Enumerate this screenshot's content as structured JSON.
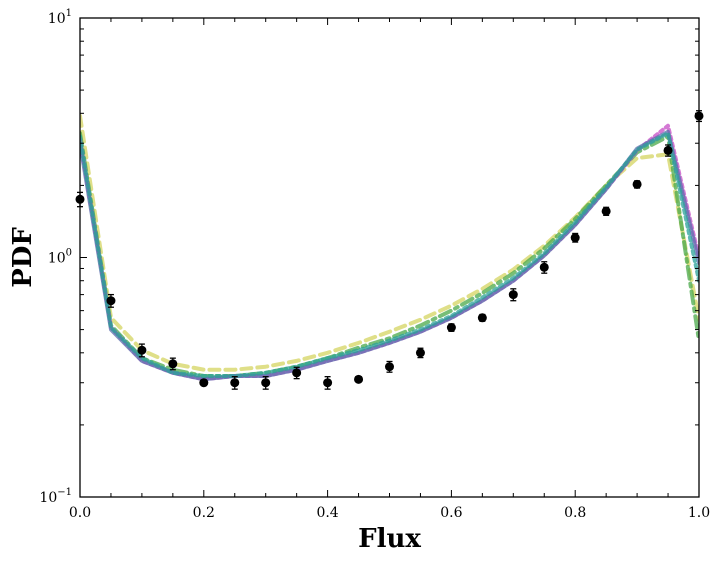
{
  "chart_data": {
    "type": "line",
    "xlabel": "Flux",
    "ylabel": "PDF",
    "xlim": [
      0.0,
      1.0
    ],
    "ylim": [
      0.1,
      10
    ],
    "yscale": "log",
    "grid": false,
    "legend": "none",
    "x_ticks": [
      "0.0",
      "0.2",
      "0.4",
      "0.6",
      "0.8",
      "1.0"
    ],
    "y_ticks": [
      {
        "value": 0.1,
        "base": "10",
        "exp": "−1"
      },
      {
        "value": 1,
        "base": "10",
        "exp": "0"
      },
      {
        "value": 10,
        "base": "10",
        "exp": "1"
      }
    ],
    "observed": {
      "color": "#000000",
      "x": [
        0.0,
        0.05,
        0.1,
        0.15,
        0.2,
        0.25,
        0.3,
        0.35,
        0.4,
        0.45,
        0.5,
        0.55,
        0.6,
        0.65,
        0.7,
        0.75,
        0.8,
        0.85,
        0.9,
        0.95,
        1.0
      ],
      "y": [
        1.75,
        0.66,
        0.41,
        0.36,
        0.3,
        0.3,
        0.3,
        0.33,
        0.3,
        0.31,
        0.35,
        0.4,
        0.51,
        0.56,
        0.7,
        0.91,
        1.21,
        1.56,
        2.02,
        2.8,
        3.9
      ],
      "err": [
        0.12,
        0.04,
        0.025,
        0.02,
        0.008,
        0.018,
        0.018,
        0.018,
        0.018,
        0.008,
        0.018,
        0.018,
        0.018,
        0.018,
        0.04,
        0.05,
        0.05,
        0.06,
        0.07,
        0.15,
        0.2
      ]
    },
    "series": [
      {
        "style": "dashed",
        "color": "#d4d460",
        "x": [
          0.0,
          0.05,
          0.1,
          0.15,
          0.2,
          0.25,
          0.3,
          0.35,
          0.4,
          0.45,
          0.5,
          0.55,
          0.6,
          0.65,
          0.7,
          0.75,
          0.8,
          0.85,
          0.9,
          0.95,
          1.0
        ],
        "y": [
          3.9,
          0.56,
          0.41,
          0.36,
          0.34,
          0.34,
          0.35,
          0.37,
          0.4,
          0.44,
          0.49,
          0.55,
          0.63,
          0.74,
          0.89,
          1.12,
          1.47,
          2.0,
          2.6,
          2.7,
          0.55
        ]
      },
      {
        "style": "dashdot",
        "color": "#4aa84a",
        "x": [
          0.0,
          0.05,
          0.1,
          0.15,
          0.2,
          0.25,
          0.3,
          0.35,
          0.4,
          0.45,
          0.5,
          0.55,
          0.6,
          0.65,
          0.7,
          0.75,
          0.8,
          0.85,
          0.9,
          0.95,
          1.0
        ],
        "y": [
          3.3,
          0.52,
          0.38,
          0.34,
          0.32,
          0.32,
          0.33,
          0.35,
          0.38,
          0.42,
          0.46,
          0.52,
          0.6,
          0.71,
          0.86,
          1.09,
          1.45,
          2.0,
          2.75,
          3.2,
          0.45
        ]
      },
      {
        "style": "dotted",
        "color": "#c54cc5",
        "x": [
          0.0,
          0.05,
          0.1,
          0.15,
          0.2,
          0.25,
          0.3,
          0.35,
          0.4,
          0.45,
          0.5,
          0.55,
          0.6,
          0.65,
          0.7,
          0.75,
          0.8,
          0.85,
          0.9,
          0.95,
          1.0
        ],
        "y": [
          3.1,
          0.51,
          0.37,
          0.33,
          0.31,
          0.32,
          0.32,
          0.34,
          0.37,
          0.4,
          0.44,
          0.49,
          0.56,
          0.66,
          0.8,
          1.02,
          1.37,
          1.93,
          2.8,
          3.55,
          1.0
        ]
      },
      {
        "style": "solid",
        "color": "#5b6fae",
        "x": [
          0.0,
          0.05,
          0.1,
          0.15,
          0.2,
          0.25,
          0.3,
          0.35,
          0.4,
          0.45,
          0.5,
          0.55,
          0.6,
          0.65,
          0.7,
          0.75,
          0.8,
          0.85,
          0.9,
          0.95,
          1.0
        ],
        "y": [
          3.0,
          0.5,
          0.37,
          0.33,
          0.31,
          0.32,
          0.32,
          0.34,
          0.37,
          0.4,
          0.44,
          0.49,
          0.56,
          0.66,
          0.8,
          1.02,
          1.37,
          1.93,
          2.85,
          3.35,
          0.95
        ]
      },
      {
        "style": "dotted",
        "color": "#2aa198",
        "x": [
          0.0,
          0.05,
          0.1,
          0.15,
          0.2,
          0.25,
          0.3,
          0.35,
          0.4,
          0.45,
          0.5,
          0.55,
          0.6,
          0.65,
          0.7,
          0.75,
          0.8,
          0.85,
          0.9,
          0.95,
          1.0
        ],
        "y": [
          3.2,
          0.51,
          0.38,
          0.33,
          0.32,
          0.32,
          0.33,
          0.35,
          0.38,
          0.41,
          0.45,
          0.5,
          0.57,
          0.68,
          0.82,
          1.04,
          1.4,
          1.96,
          2.82,
          3.3,
          0.8
        ]
      }
    ]
  }
}
